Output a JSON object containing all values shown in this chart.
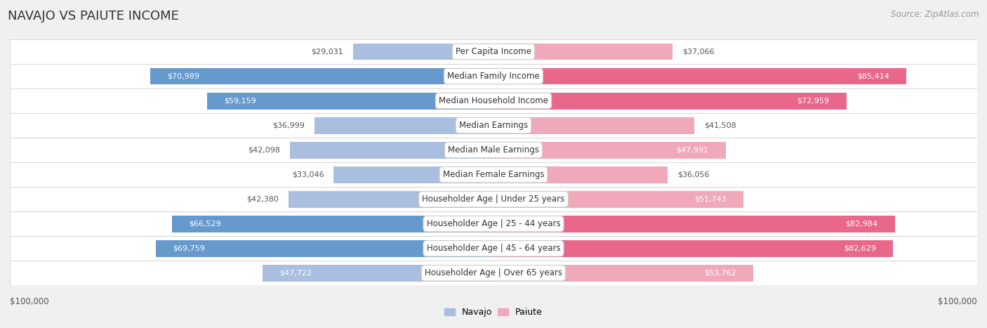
{
  "title": "NAVAJO VS PAIUTE INCOME",
  "source": "Source: ZipAtlas.com",
  "categories": [
    "Per Capita Income",
    "Median Family Income",
    "Median Household Income",
    "Median Earnings",
    "Median Male Earnings",
    "Median Female Earnings",
    "Householder Age | Under 25 years",
    "Householder Age | 25 - 44 years",
    "Householder Age | 45 - 64 years",
    "Householder Age | Over 65 years"
  ],
  "navajo_values": [
    29031,
    70989,
    59159,
    36999,
    42098,
    33046,
    42380,
    66529,
    69759,
    47722
  ],
  "paiute_values": [
    37066,
    85414,
    72959,
    41508,
    47991,
    36056,
    51743,
    82984,
    82629,
    53762
  ],
  "navajo_color_strong": "#6699cc",
  "navajo_color_weak": "#aabfdf",
  "paiute_color_strong": "#e8678a",
  "paiute_color_weak": "#f0a8bb",
  "label_inside_color": "#ffffff",
  "label_outside_color": "#555555",
  "background_color": "#f0f0f0",
  "row_bg_light": "#f8f8f8",
  "row_bg_dark": "#ececec",
  "max_value": 100000,
  "inside_threshold_navajo": 45000,
  "inside_threshold_paiute": 45000,
  "legend_navajo": "Navajo",
  "legend_paiute": "Paiute",
  "title_fontsize": 13,
  "label_fontsize": 8,
  "category_fontsize": 8.5,
  "axis_label_fontsize": 8.5,
  "source_fontsize": 8.5,
  "bar_height": 0.68
}
